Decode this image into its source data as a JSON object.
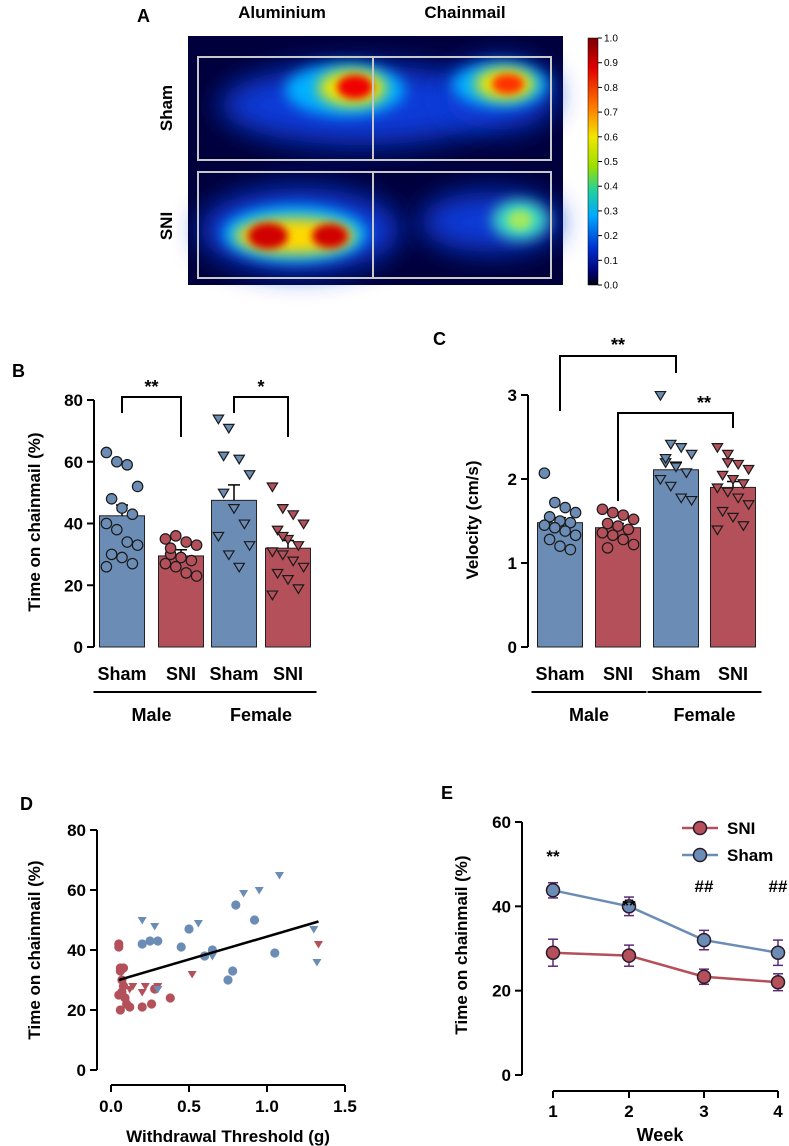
{
  "colors": {
    "sham": "#6b8cb5",
    "sni": "#b4505a",
    "sham_edge": "#2a3a55",
    "sni_edge": "#4a1c22",
    "axis": "#000000"
  },
  "panels": {
    "A": {
      "letter": "A",
      "col_labels": [
        "Aluminium",
        "Chainmail"
      ],
      "row_labels": [
        "Sham",
        "SNI"
      ],
      "colorbar": {
        "ticks": [
          "1.0",
          "0.9",
          "0.8",
          "0.7",
          "0.6",
          "0.5",
          "0.4",
          "0.3",
          "0.2",
          "0.1",
          "0.0"
        ]
      }
    },
    "B": {
      "letter": "B"
    },
    "C": {
      "letter": "C"
    },
    "D": {
      "letter": "D"
    },
    "E": {
      "letter": "E"
    }
  },
  "chart_data": [
    {
      "panel": "A",
      "type": "heatmap",
      "description_values": "normalized occupancy density 0-1",
      "rows": [
        "Sham",
        "SNI"
      ],
      "columns": [
        "Aluminium",
        "Chainmail"
      ],
      "hotspots": [
        {
          "row": "Sham",
          "column": "Aluminium",
          "peak": 1.0
        },
        {
          "row": "Sham",
          "column": "Chainmail",
          "peak": 0.9
        },
        {
          "row": "SNI",
          "column": "Aluminium",
          "peak": 1.0
        },
        {
          "row": "SNI",
          "column": "Chainmail",
          "peak": 0.55
        }
      ],
      "colorbar_range": [
        0.0,
        1.0
      ]
    },
    {
      "panel": "B",
      "type": "bar",
      "ylabel": "Time on chainmail (%)",
      "ylim": [
        0,
        80
      ],
      "yticks": [
        "0",
        "20",
        "40",
        "60",
        "80"
      ],
      "categories": [
        "Sham",
        "SNI",
        "Sham",
        "SNI"
      ],
      "groups": [
        "Male",
        "Female"
      ],
      "means": [
        42.5,
        29.5,
        47.5,
        32.0
      ],
      "sem": [
        3.5,
        2.0,
        5.0,
        2.5
      ],
      "points": [
        [
          63,
          60,
          59,
          52,
          48,
          45,
          43,
          40,
          38,
          34,
          33,
          30,
          29,
          27,
          26
        ],
        [
          35,
          36,
          34,
          33,
          30,
          29,
          28,
          27,
          26,
          24,
          23,
          32
        ],
        [
          74,
          71,
          61,
          56,
          50,
          45,
          40,
          36,
          30,
          26,
          33,
          62
        ],
        [
          52,
          45,
          43,
          40,
          38,
          35,
          33,
          31,
          30,
          28,
          26,
          24,
          22,
          19,
          17,
          36
        ]
      ],
      "significance": [
        {
          "label": "**"
        },
        {
          "label": "*"
        }
      ]
    },
    {
      "panel": "C",
      "type": "bar",
      "ylabel": "Velocity (cm/s)",
      "ylim": [
        0,
        3
      ],
      "yticks": [
        "0",
        "1",
        "2",
        "3"
      ],
      "categories": [
        "Sham",
        "SNI",
        "Sham",
        "SNI"
      ],
      "groups": [
        "Male",
        "Female"
      ],
      "means": [
        1.48,
        1.42,
        2.11,
        1.9
      ],
      "sem": [
        0.06,
        0.05,
        0.09,
        0.07
      ],
      "points": [
        [
          2.07,
          1.72,
          1.66,
          1.6,
          1.55,
          1.5,
          1.48,
          1.45,
          1.42,
          1.38,
          1.33,
          1.28,
          1.2,
          1.16
        ],
        [
          1.64,
          1.6,
          1.57,
          1.52,
          1.47,
          1.44,
          1.4,
          1.36,
          1.33,
          1.28,
          1.22,
          1.18
        ],
        [
          3.0,
          2.42,
          2.38,
          2.3,
          2.2,
          2.15,
          2.08,
          2.0,
          1.92,
          1.78,
          1.75,
          2.25
        ],
        [
          2.38,
          2.3,
          2.18,
          2.12,
          2.05,
          2.0,
          1.95,
          1.9,
          1.85,
          1.78,
          1.7,
          1.62,
          1.55,
          1.45,
          1.4,
          2.2
        ]
      ],
      "significance": [
        {
          "label": "**"
        },
        {
          "label": "**"
        }
      ]
    },
    {
      "panel": "D",
      "type": "scatter",
      "xlabel": "Withdrawal Threshold (g)",
      "ylabel": "Time on chainmail (%)",
      "xlim": [
        0,
        1.5
      ],
      "ylim": [
        0,
        80
      ],
      "xticks": [
        "0.0",
        "0.5",
        "1.0",
        "1.5"
      ],
      "yticks": [
        "0",
        "20",
        "40",
        "60",
        "80"
      ],
      "series": [
        {
          "name": "SNI male",
          "color": "#b4505a",
          "marker": "circle",
          "x": [
            0.05,
            0.06,
            0.07,
            0.08,
            0.05,
            0.1,
            0.06,
            0.09,
            0.12,
            0.05,
            0.08,
            0.07,
            0.2,
            0.26,
            0.28,
            0.38,
            0.06
          ],
          "y": [
            42,
            34,
            30,
            28,
            25,
            22,
            20,
            24,
            21,
            41,
            34,
            26,
            21,
            22,
            27,
            24,
            33
          ]
        },
        {
          "name": "SNI female",
          "color": "#b4505a",
          "marker": "triangle",
          "x": [
            0.08,
            0.12,
            0.14,
            0.2,
            0.22,
            0.3,
            0.52,
            1.33
          ],
          "y": [
            30,
            27,
            28,
            26,
            28,
            28,
            32,
            42
          ]
        },
        {
          "name": "Sham male",
          "color": "#6b8cb5",
          "marker": "circle",
          "x": [
            0.2,
            0.25,
            0.3,
            0.45,
            0.5,
            0.6,
            0.65,
            0.75,
            0.78,
            0.92,
            1.05,
            0.8
          ],
          "y": [
            42,
            43,
            43,
            41,
            47,
            38,
            40,
            30,
            33,
            50,
            39,
            55
          ]
        },
        {
          "name": "Sham female",
          "color": "#6b8cb5",
          "marker": "triangle",
          "x": [
            0.2,
            0.28,
            0.3,
            0.56,
            0.65,
            0.85,
            0.95,
            1.08,
            1.3,
            1.32
          ],
          "y": [
            50,
            48,
            27,
            49,
            38,
            59,
            60,
            65,
            47,
            36
          ]
        }
      ],
      "regression": {
        "x": [
          0.05,
          1.33
        ],
        "y": [
          30.0,
          49.5
        ]
      }
    },
    {
      "panel": "E",
      "type": "line",
      "xlabel": "Week",
      "ylabel": "Time on chainmail (%)",
      "x": [
        1,
        2,
        3,
        4
      ],
      "xticks": [
        "1",
        "2",
        "3",
        "4"
      ],
      "ylim": [
        0,
        60
      ],
      "yticks": [
        "0",
        "20",
        "40",
        "60"
      ],
      "series": [
        {
          "name": "SNI",
          "color": "#b4505a",
          "values": [
            29.0,
            28.3,
            23.3,
            22.0
          ],
          "sem": [
            3.2,
            2.5,
            1.8,
            2.0
          ]
        },
        {
          "name": "Sham",
          "color": "#6b8cb5",
          "values": [
            43.8,
            40.0,
            32.0,
            29.0
          ],
          "sem": [
            1.8,
            2.2,
            2.3,
            3.0
          ]
        }
      ],
      "annotations": [
        {
          "x": 1,
          "text": "**"
        },
        {
          "x": 2,
          "text": "**"
        },
        {
          "x": 3,
          "text": "##"
        },
        {
          "x": 4,
          "text": "##"
        }
      ],
      "legend": "top-right"
    }
  ]
}
